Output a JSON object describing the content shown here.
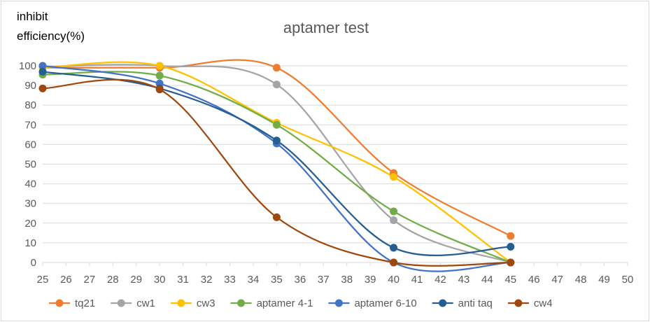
{
  "chart_data": {
    "type": "line",
    "title": "aptamer test",
    "ylabel_lines": [
      "inhibit",
      "efficiency(%)"
    ],
    "xlabel": "",
    "xlim": [
      25,
      50
    ],
    "ylim": [
      0,
      100
    ],
    "x_ticks": [
      25,
      26,
      27,
      28,
      29,
      30,
      31,
      32,
      33,
      34,
      35,
      36,
      37,
      38,
      39,
      40,
      41,
      42,
      43,
      44,
      45,
      46,
      47,
      48,
      49,
      50
    ],
    "y_ticks": [
      0,
      10,
      20,
      30,
      40,
      50,
      60,
      70,
      80,
      90,
      100
    ],
    "grid": "horizontal",
    "smooth": true,
    "legend_position": "bottom",
    "x": [
      25,
      30,
      35,
      40,
      45
    ],
    "series": [
      {
        "name": "tq21",
        "color": "#ED7D31",
        "values": [
          99,
          99,
          99,
          45.5,
          13.5
        ]
      },
      {
        "name": "cw1",
        "color": "#A5A5A5",
        "values": [
          99.5,
          100,
          90.5,
          21.5,
          0
        ]
      },
      {
        "name": "cw3",
        "color": "#FFC000",
        "values": [
          99,
          100,
          71,
          43.5,
          0
        ]
      },
      {
        "name": "aptamer 4-1",
        "color": "#70AD47",
        "values": [
          95.5,
          95,
          70,
          26,
          0
        ]
      },
      {
        "name": "aptamer 6-10",
        "color": "#4472C4",
        "values": [
          100,
          91,
          60.5,
          0,
          0
        ]
      },
      {
        "name": "anti taq",
        "color": "#255E91",
        "values": [
          97,
          88.5,
          62,
          7.5,
          8
        ]
      },
      {
        "name": "cw4",
        "color": "#9E480E",
        "values": [
          88.5,
          88,
          23,
          0,
          0
        ]
      }
    ]
  }
}
